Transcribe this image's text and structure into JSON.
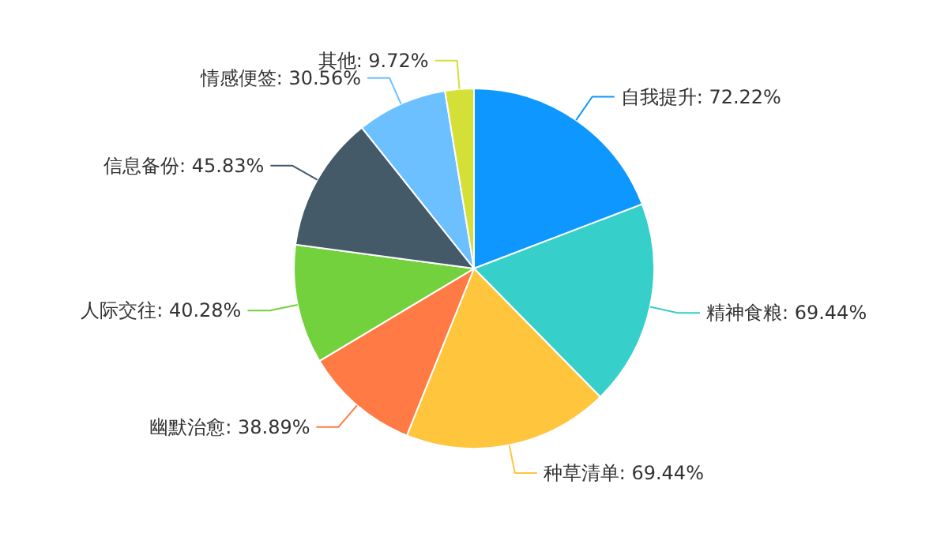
{
  "chart_data": {
    "type": "pie",
    "categories": [
      "自我提升",
      "精神食粮",
      "种草清单",
      "幽默治愈",
      "人际交往",
      "信息备份",
      "情感便签",
      "其他"
    ],
    "values": [
      72.22,
      69.44,
      69.44,
      38.89,
      40.28,
      45.83,
      30.56,
      9.72
    ],
    "value_labels": [
      "72.22%",
      "69.44%",
      "69.44%",
      "38.89%",
      "40.28%",
      "45.83%",
      "30.56%",
      "9.72%"
    ],
    "colors": [
      "#0e97fe",
      "#36cfc9",
      "#ffc53d",
      "#ff7a45",
      "#73d13d",
      "#455a69",
      "#6cc0ff",
      "#d4e037"
    ]
  }
}
